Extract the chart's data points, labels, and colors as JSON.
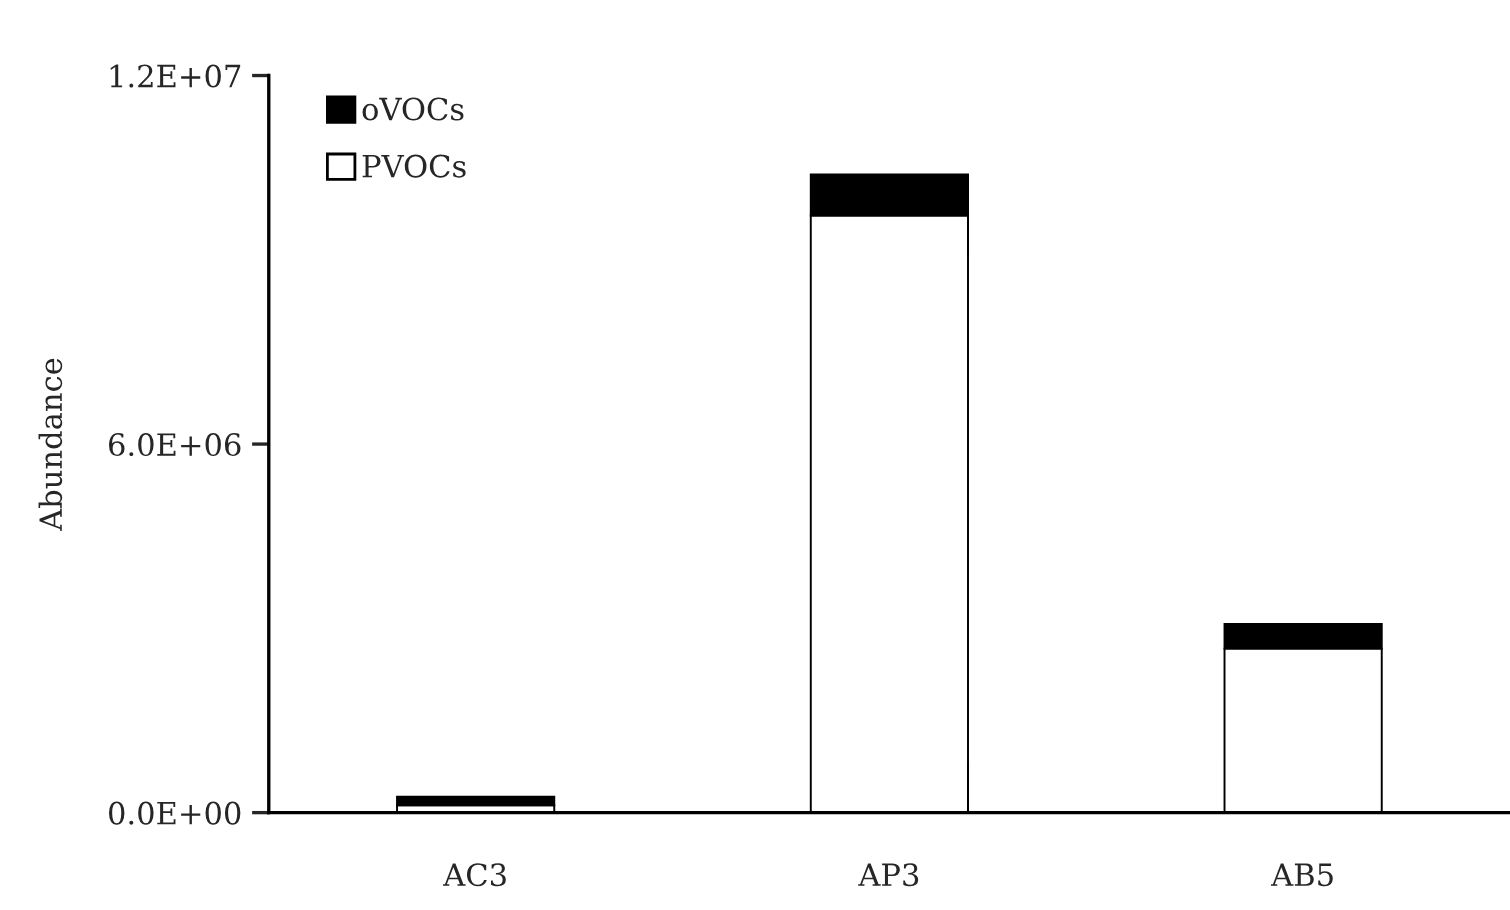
{
  "chart_data": {
    "type": "bar",
    "stacked": true,
    "ylabel": "Abundance",
    "categories": [
      "AC3",
      "AP3",
      "AB5"
    ],
    "series": [
      {
        "name": "PVOCs",
        "color": "#ffffff",
        "values": [
          120000,
          9720000,
          2670000
        ]
      },
      {
        "name": "oVOCs",
        "color": "#000000",
        "values": [
          140000,
          670000,
          400000
        ]
      }
    ],
    "ylim": [
      0,
      12000000
    ],
    "yticks": [
      {
        "value": 0,
        "label": "0.0E+00"
      },
      {
        "value": 6000000,
        "label": "6.0E+06"
      },
      {
        "value": 12000000,
        "label": "1.2E+07"
      }
    ],
    "legend": "top left",
    "grid": false
  }
}
